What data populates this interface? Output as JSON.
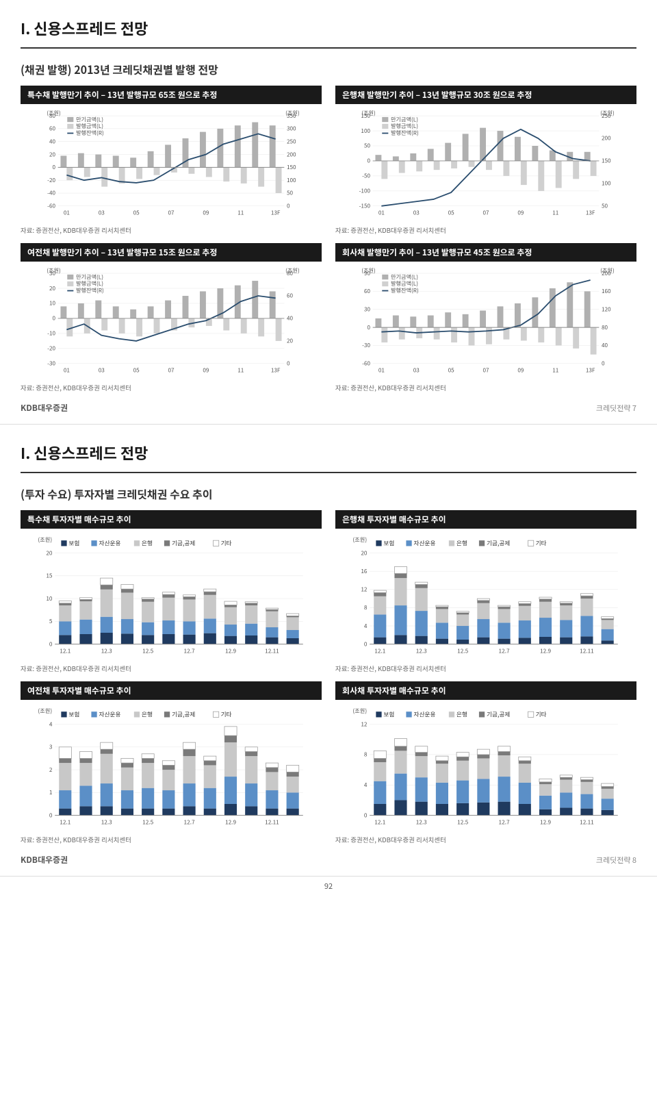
{
  "page7": {
    "main_title": "I. 신용스프레드 전망",
    "subtitle": "(채권 발행) 2013년 크레딧채권별 발행 전망",
    "source_text": "자료: 증권전산, KDB대우증권 리서치센터",
    "logo": "KDB대우증권",
    "page_label": "크레딧전략 7",
    "x_labels": [
      "01",
      "03",
      "05",
      "07",
      "09",
      "11",
      "13F"
    ],
    "top_legend": {
      "series_a": "만기금액(L)",
      "series_b": "발행금액(L)",
      "series_c": "발행잔액(R)"
    },
    "y_unit_left": "(조원)",
    "y_unit_right": "(조원)",
    "colors": {
      "bar_dark": "#b0b0b0",
      "bar_light": "#d0d0d0",
      "line": "#2a4d6e",
      "grid": "#e5e5e5"
    },
    "charts": {
      "topleft": {
        "title": "특수채 발행만기 추이 – 13년 발행규모 65조 원으로 추정",
        "left_ticks": [
          80,
          60,
          40,
          20,
          0,
          -20,
          -40,
          -60
        ],
        "right_ticks": [
          350,
          300,
          250,
          200,
          150,
          100,
          50,
          0
        ],
        "bars_a": [
          18,
          22,
          20,
          18,
          15,
          25,
          35,
          45,
          55,
          60,
          65,
          70,
          65
        ],
        "bars_b": [
          -20,
          -15,
          -30,
          -25,
          -18,
          -12,
          -8,
          -10,
          -15,
          -22,
          -25,
          -30,
          -40
        ],
        "line": [
          120,
          100,
          110,
          95,
          90,
          100,
          140,
          180,
          200,
          240,
          260,
          280,
          260
        ]
      },
      "topright": {
        "title": "은행채 발행만기 추이 – 13년 발행규모 30조 원으로 추정",
        "left_ticks": [
          150,
          100,
          50,
          0,
          -50,
          -100,
          -150
        ],
        "right_ticks": [
          250,
          200,
          150,
          100,
          50
        ],
        "bars_a": [
          20,
          15,
          25,
          40,
          60,
          90,
          110,
          100,
          80,
          50,
          35,
          30,
          30
        ],
        "bars_b": [
          -60,
          -40,
          -35,
          -30,
          -25,
          -20,
          -30,
          -50,
          -80,
          -100,
          -90,
          -60,
          -50
        ],
        "line": [
          50,
          55,
          60,
          65,
          80,
          120,
          160,
          200,
          220,
          200,
          170,
          155,
          150
        ]
      },
      "botleft": {
        "title": "여전채 발행만기 추이 – 13년 발행규모 15조 원으로 추정",
        "left_ticks": [
          30,
          20,
          10,
          0,
          -10,
          -20,
          -30
        ],
        "right_ticks": [
          80,
          60,
          40,
          20,
          0
        ],
        "bars_a": [
          8,
          10,
          12,
          8,
          6,
          8,
          12,
          15,
          18,
          20,
          22,
          25,
          18
        ],
        "bars_b": [
          -12,
          -10,
          -8,
          -10,
          -12,
          -10,
          -8,
          -6,
          -5,
          -8,
          -10,
          -12,
          -15
        ],
        "line": [
          30,
          35,
          25,
          22,
          20,
          25,
          30,
          35,
          38,
          45,
          55,
          60,
          58
        ]
      },
      "botright": {
        "title": "회사채 발행만기 추이 – 13년 발행규모 45조 원으로 추정",
        "left_ticks": [
          90,
          60,
          30,
          0,
          -30,
          -60
        ],
        "right_ticks": [
          200,
          160,
          120,
          80,
          40,
          0
        ],
        "bars_a": [
          15,
          20,
          18,
          20,
          25,
          22,
          28,
          35,
          40,
          50,
          65,
          75,
          60
        ],
        "bars_b": [
          -25,
          -20,
          -18,
          -20,
          -25,
          -30,
          -28,
          -20,
          -22,
          -25,
          -30,
          -35,
          -45
        ],
        "line": [
          70,
          72,
          68,
          70,
          72,
          70,
          72,
          75,
          85,
          110,
          150,
          175,
          185
        ]
      }
    }
  },
  "page8": {
    "main_title": "I. 신용스프레드 전망",
    "subtitle": "(투자 수요) 투자자별 크레딧채권 수요 추이",
    "source_text": "자료: 증권전산, KDB대우증권 리서치센터",
    "logo": "KDB대우증권",
    "page_label": "크레딧전략 8",
    "page_num": "92",
    "y_unit": "(조원)",
    "x_labels": [
      "12.1",
      "12.3",
      "12.5",
      "12.7",
      "12.9",
      "12.11"
    ],
    "legend": {
      "a": "보험",
      "b": "자산운용",
      "c": "은행",
      "d": "기금,공제",
      "e": "기타"
    },
    "colors": {
      "a": "#1f3a5f",
      "b": "#5b8fc7",
      "c": "#c8c8c8",
      "d": "#7a7a7a",
      "e": "#ffffff",
      "e_border": "#999",
      "grid": "#e5e5e5"
    },
    "charts": {
      "sp": {
        "title": "특수채 투자자별 매수규모 추이",
        "ymax": 20,
        "yticks": [
          20,
          15,
          10,
          5,
          0
        ],
        "data": [
          [
            2,
            3,
            3.5,
            0.5,
            0.5
          ],
          [
            2.2,
            3.2,
            4,
            0.4,
            0.4
          ],
          [
            2.5,
            3.5,
            6,
            1,
            1.5
          ],
          [
            2.3,
            3.2,
            5.8,
            0.8,
            1
          ],
          [
            2,
            2.8,
            4.5,
            0.6,
            0.3
          ],
          [
            2.2,
            3,
            5,
            0.7,
            0.5
          ],
          [
            2.1,
            2.9,
            4.8,
            0.6,
            0.4
          ],
          [
            2.4,
            3.2,
            5.2,
            0.7,
            0.6
          ],
          [
            1.8,
            2.5,
            3.8,
            0.5,
            0.8
          ],
          [
            1.9,
            2.6,
            4,
            0.5,
            0.3
          ],
          [
            1.5,
            2.2,
            3.5,
            0.4,
            0.3
          ],
          [
            1.3,
            1.8,
            2.8,
            0.3,
            0.5
          ]
        ]
      },
      "bk": {
        "title": "은행채 투자자별 매수규모 추이",
        "ymax": 20,
        "yticks": [
          20,
          16,
          12,
          8,
          4,
          0
        ],
        "data": [
          [
            1.5,
            5,
            4,
            0.8,
            0.5
          ],
          [
            2,
            6.5,
            6,
            1,
            1.5
          ],
          [
            1.8,
            5.5,
            5,
            0.8,
            0.5
          ],
          [
            1.2,
            3.5,
            3,
            0.5,
            0.3
          ],
          [
            1,
            3,
            2.5,
            0.4,
            0.3
          ],
          [
            1.5,
            4,
            3.5,
            0.6,
            0.4
          ],
          [
            1.2,
            3.5,
            3,
            0.5,
            0.3
          ],
          [
            1.4,
            3.8,
            3.2,
            0.5,
            0.4
          ],
          [
            1.6,
            4.2,
            3.5,
            0.6,
            0.4
          ],
          [
            1.5,
            3.8,
            3.2,
            0.5,
            0.3
          ],
          [
            1.7,
            4.5,
            3.8,
            0.6,
            0.5
          ],
          [
            0.8,
            2.5,
            2,
            0.3,
            0.4
          ]
        ]
      },
      "fn": {
        "title": "여전채 투자자별 매수규모 추이",
        "ymax": 4,
        "yticks": [
          4,
          3,
          2,
          1,
          0
        ],
        "data": [
          [
            0.3,
            0.8,
            1.2,
            0.2,
            0.5
          ],
          [
            0.4,
            0.9,
            1,
            0.2,
            0.3
          ],
          [
            0.4,
            1,
            1.3,
            0.2,
            0.3
          ],
          [
            0.3,
            0.8,
            1,
            0.2,
            0.2
          ],
          [
            0.3,
            0.9,
            1.1,
            0.2,
            0.2
          ],
          [
            0.3,
            0.8,
            0.9,
            0.2,
            0.2
          ],
          [
            0.4,
            1,
            1.2,
            0.3,
            0.3
          ],
          [
            0.3,
            0.9,
            1,
            0.2,
            0.2
          ],
          [
            0.5,
            1.2,
            1.5,
            0.3,
            0.4
          ],
          [
            0.4,
            1,
            1.2,
            0.2,
            0.2
          ],
          [
            0.3,
            0.8,
            0.8,
            0.2,
            0.2
          ],
          [
            0.3,
            0.7,
            0.7,
            0.2,
            0.3
          ]
        ]
      },
      "cp": {
        "title": "회사채 투자자별 매수규모 추이",
        "ymax": 12,
        "yticks": [
          12,
          8,
          4,
          0
        ],
        "data": [
          [
            1.5,
            3,
            2.5,
            0.5,
            1
          ],
          [
            2,
            3.5,
            3,
            0.6,
            1
          ],
          [
            1.8,
            3.2,
            2.8,
            0.5,
            0.8
          ],
          [
            1.5,
            2.8,
            2.5,
            0.4,
            0.6
          ],
          [
            1.6,
            3,
            2.6,
            0.5,
            0.6
          ],
          [
            1.7,
            3.1,
            2.7,
            0.5,
            0.7
          ],
          [
            1.8,
            3.3,
            2.8,
            0.5,
            0.7
          ],
          [
            1.5,
            2.8,
            2.5,
            0.4,
            0.5
          ],
          [
            0.8,
            1.8,
            1.5,
            0.3,
            0.4
          ],
          [
            1,
            2,
            1.7,
            0.3,
            0.3
          ],
          [
            0.9,
            1.9,
            1.6,
            0.3,
            0.3
          ],
          [
            0.7,
            1.5,
            1.3,
            0.3,
            0.4
          ]
        ]
      }
    }
  }
}
